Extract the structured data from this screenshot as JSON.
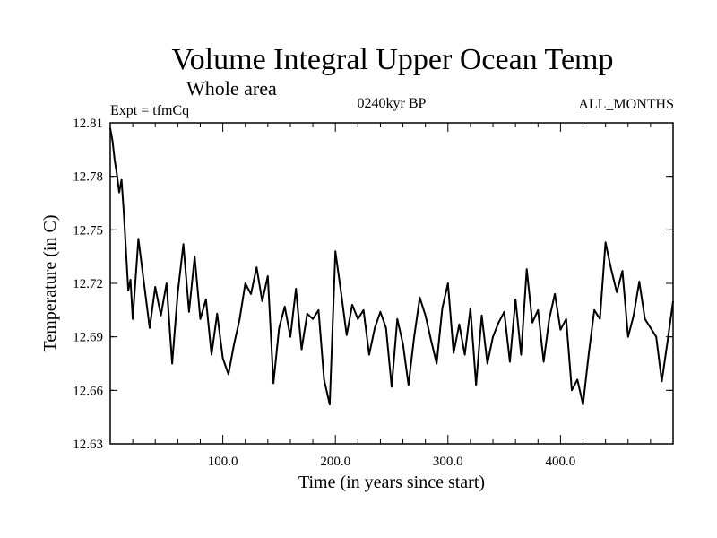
{
  "chart_data": {
    "type": "line",
    "title": "Volume Integral Upper Ocean Temp",
    "subtitle": "Whole area",
    "left_label": "Expt = tfmCq",
    "center_label": "0240kyr BP",
    "right_label": "ALL_MONTHS",
    "xlabel": "Time (in years since start)",
    "ylabel": "Temperature (in C)",
    "xlim": [
      0,
      500
    ],
    "ylim": [
      12.63,
      12.81
    ],
    "x_ticks": [
      {
        "value": 100,
        "label": "100.0"
      },
      {
        "value": 200,
        "label": "200.0"
      },
      {
        "value": 300,
        "label": "300.0"
      },
      {
        "value": 400,
        "label": "400.0"
      }
    ],
    "y_ticks": [
      {
        "value": 12.63,
        "label": "12.63"
      },
      {
        "value": 12.66,
        "label": "12.66"
      },
      {
        "value": 12.69,
        "label": "12.69"
      },
      {
        "value": 12.72,
        "label": "12.72"
      },
      {
        "value": 12.75,
        "label": "12.75"
      },
      {
        "value": 12.78,
        "label": "12.78"
      },
      {
        "value": 12.81,
        "label": "12.81"
      }
    ],
    "grid": false,
    "line_color": "#000000",
    "series": [
      {
        "x": [
          0,
          2,
          4,
          6,
          8,
          10,
          12,
          14,
          16,
          18,
          20,
          25,
          30,
          35,
          40,
          45,
          50,
          55,
          60,
          65,
          70,
          75,
          80,
          85,
          90,
          95,
          100,
          105,
          110,
          115,
          120,
          125,
          130,
          135,
          140,
          145,
          150,
          155,
          160,
          165,
          170,
          175,
          180,
          185,
          190,
          195,
          200,
          205,
          210,
          215,
          220,
          225,
          230,
          235,
          240,
          245,
          250,
          255,
          260,
          265,
          270,
          275,
          280,
          285,
          290,
          295,
          300,
          305,
          310,
          315,
          320,
          325,
          330,
          335,
          340,
          345,
          350,
          355,
          360,
          365,
          370,
          375,
          380,
          385,
          390,
          395,
          400,
          405,
          410,
          415,
          420,
          425,
          430,
          435,
          440,
          445,
          450,
          455,
          460,
          465,
          470,
          475,
          480,
          485,
          490,
          495,
          500
        ],
        "y": [
          12.807,
          12.8,
          12.789,
          12.781,
          12.771,
          12.778,
          12.76,
          12.738,
          12.716,
          12.722,
          12.7,
          12.745,
          12.72,
          12.695,
          12.718,
          12.702,
          12.72,
          12.675,
          12.715,
          12.742,
          12.704,
          12.735,
          12.7,
          12.711,
          12.68,
          12.703,
          12.678,
          12.669,
          12.686,
          12.7,
          12.72,
          12.714,
          12.729,
          12.71,
          12.724,
          12.664,
          12.695,
          12.707,
          12.69,
          12.717,
          12.683,
          12.703,
          12.7,
          12.705,
          12.666,
          12.652,
          12.738,
          12.715,
          12.691,
          12.708,
          12.7,
          12.705,
          12.68,
          12.695,
          12.704,
          12.695,
          12.662,
          12.7,
          12.686,
          12.663,
          12.69,
          12.712,
          12.702,
          12.688,
          12.675,
          12.706,
          12.72,
          12.681,
          12.697,
          12.68,
          12.706,
          12.663,
          12.702,
          12.675,
          12.69,
          12.698,
          12.704,
          12.676,
          12.711,
          12.68,
          12.728,
          12.698,
          12.705,
          12.676,
          12.7,
          12.714,
          12.694,
          12.7,
          12.66,
          12.666,
          12.652,
          12.68,
          12.705,
          12.7,
          12.743,
          12.728,
          12.715,
          12.727,
          12.69,
          12.702,
          12.721,
          12.7,
          12.695,
          12.69,
          12.665,
          12.687,
          12.71
        ]
      }
    ]
  }
}
